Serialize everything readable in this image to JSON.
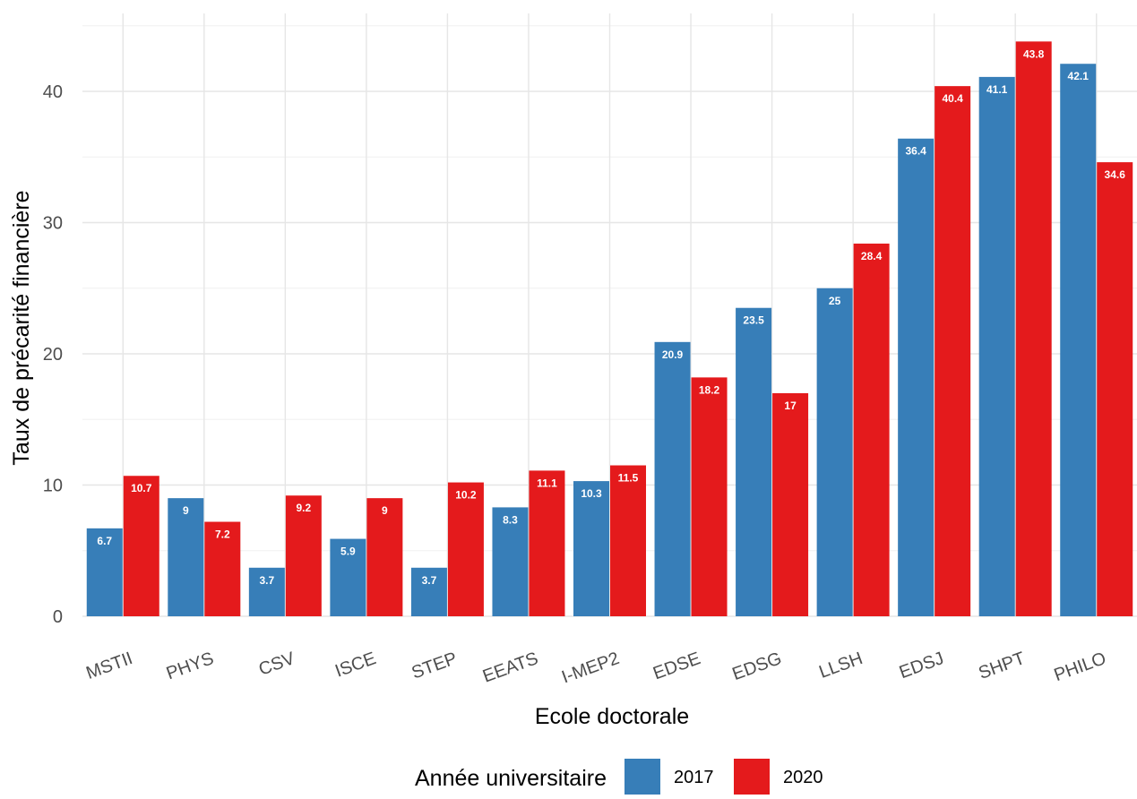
{
  "chart_data": {
    "type": "bar",
    "xlabel": "Ecole doctorale",
    "ylabel": "Taux de précarité financière",
    "categories": [
      "MSTII",
      "PHYS",
      "CSV",
      "ISCE",
      "STEP",
      "EEATS",
      "I-MEP2",
      "EDSE",
      "EDSG",
      "LLSH",
      "EDSJ",
      "SHPT",
      "PHILO"
    ],
    "series": [
      {
        "name": "2017",
        "color": "#377EB8",
        "values": [
          6.7,
          9,
          3.7,
          5.9,
          3.7,
          8.3,
          10.3,
          20.9,
          23.5,
          25,
          36.4,
          41.1,
          42.1
        ]
      },
      {
        "name": "2020",
        "color": "#E41A1C",
        "values": [
          10.7,
          7.2,
          9.2,
          9,
          10.2,
          11.1,
          11.5,
          18.2,
          17,
          28.4,
          40.4,
          43.8,
          34.6
        ]
      }
    ],
    "yticks": [
      0,
      10,
      20,
      30,
      40
    ],
    "ylim": [
      0,
      46
    ],
    "grid": true,
    "legend": {
      "title": "Année universitaire",
      "placement": "bottom"
    }
  }
}
